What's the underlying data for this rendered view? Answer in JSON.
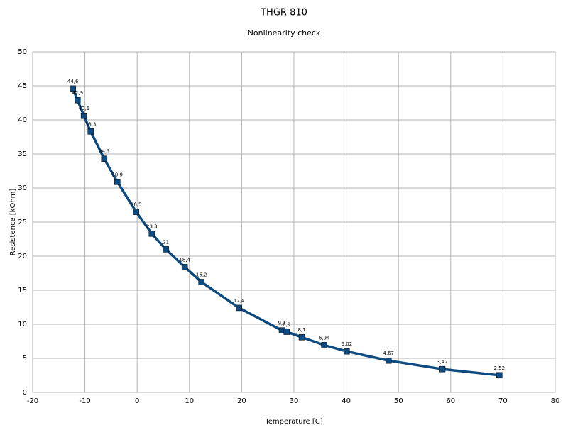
{
  "chart_data": {
    "type": "line",
    "title": "THGR 810",
    "subtitle": "Nonlinearity check",
    "x_label": "Temperature [C]",
    "y_label": "Resistence [kOhm]",
    "x": [
      -12.3,
      -11.4,
      -10.2,
      -8.9,
      -6.3,
      -3.8,
      -0.2,
      2.8,
      5.5,
      9.1,
      12.3,
      19.5,
      27.7,
      28.6,
      31.5,
      35.8,
      40.1,
      48.1,
      58.4,
      69.3
    ],
    "values": [
      44.6,
      42.9,
      40.6,
      38.3,
      34.3,
      30.9,
      26.5,
      23.3,
      21,
      18.4,
      16.2,
      12.4,
      9.1,
      8.9,
      8.1,
      6.94,
      6.02,
      4.67,
      3.42,
      2.52
    ],
    "value_labels": [
      "44,6",
      "42,9",
      "40,6",
      "38,3",
      "34,3",
      "30,9",
      "26,5",
      "23,3",
      "21",
      "18,4",
      "16,2",
      "12,4",
      "9,1",
      "8,9",
      "8,1",
      "6,94",
      "6,02",
      "4,67",
      "3,42",
      "2,52"
    ],
    "color": "#0d4a7f",
    "xlim": [
      -20,
      80
    ],
    "xticks": [
      -20,
      -10,
      0,
      10,
      20,
      30,
      40,
      50,
      60,
      70,
      80
    ],
    "ylim": [
      0,
      50
    ],
    "yticks": [
      0,
      5,
      10,
      15,
      20,
      25,
      30,
      35,
      40,
      45,
      50
    ],
    "grid": true
  }
}
